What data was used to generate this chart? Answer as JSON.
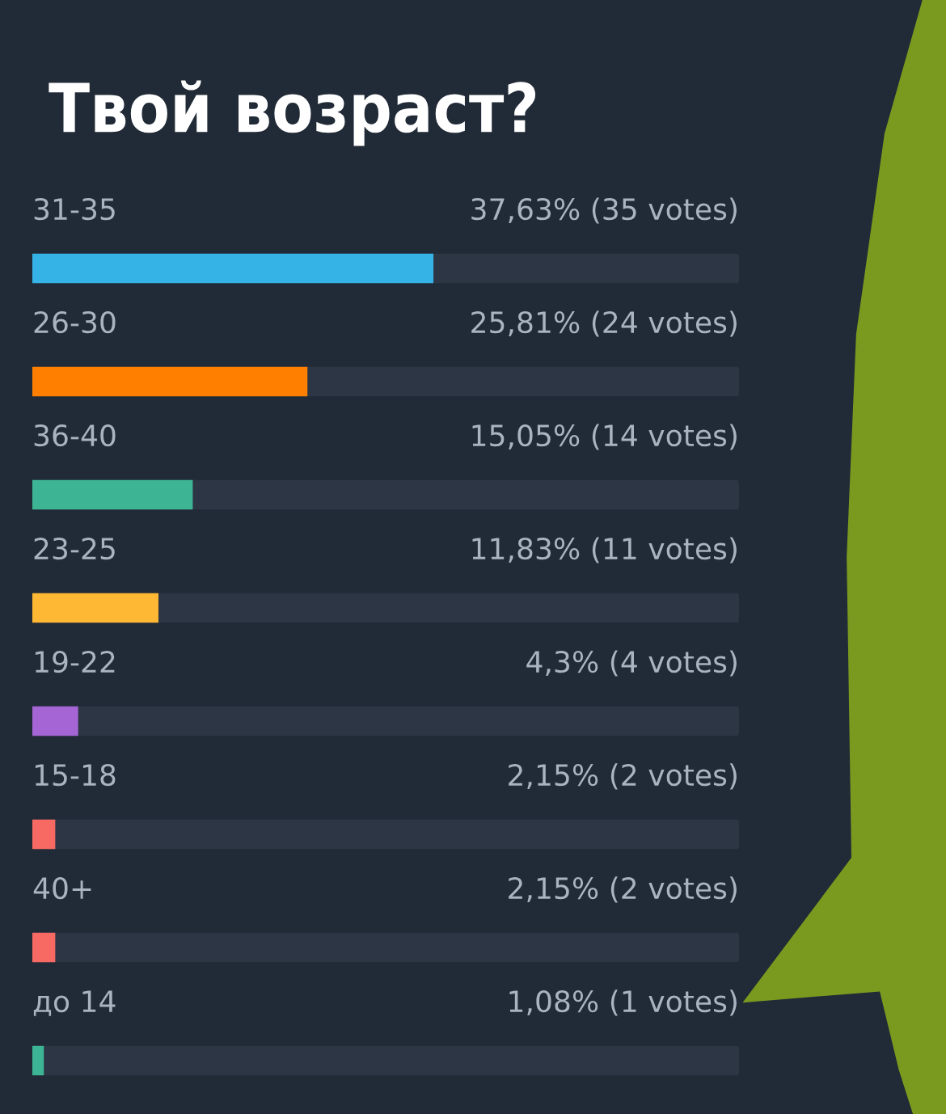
{
  "chart_data": {
    "type": "bar",
    "orientation": "horizontal",
    "title": "Твой возраст?",
    "categories": [
      "31-35",
      "26-30",
      "36-40",
      "23-25",
      "19-22",
      "15-18",
      "40+",
      "до 14"
    ],
    "values": [
      37.63,
      25.81,
      15.05,
      11.83,
      4.3,
      2.15,
      2.15,
      1.08
    ],
    "colors": [
      "#36b3e6",
      "#ff8000",
      "#3db594",
      "#ffb833",
      "#a665d4",
      "#f76a63",
      "#f76a63",
      "#3db594"
    ],
    "value_labels": [
      "37,63% (35 votes)",
      "25,81% (24 votes)",
      "15,05% (14 votes)",
      "11,83% (11 votes)",
      "4,3% (4 votes)",
      "2,15% (2 votes)",
      "2,15% (2 votes)",
      "1,08% (1 votes)"
    ],
    "xlim": [
      0,
      66.3
    ]
  }
}
